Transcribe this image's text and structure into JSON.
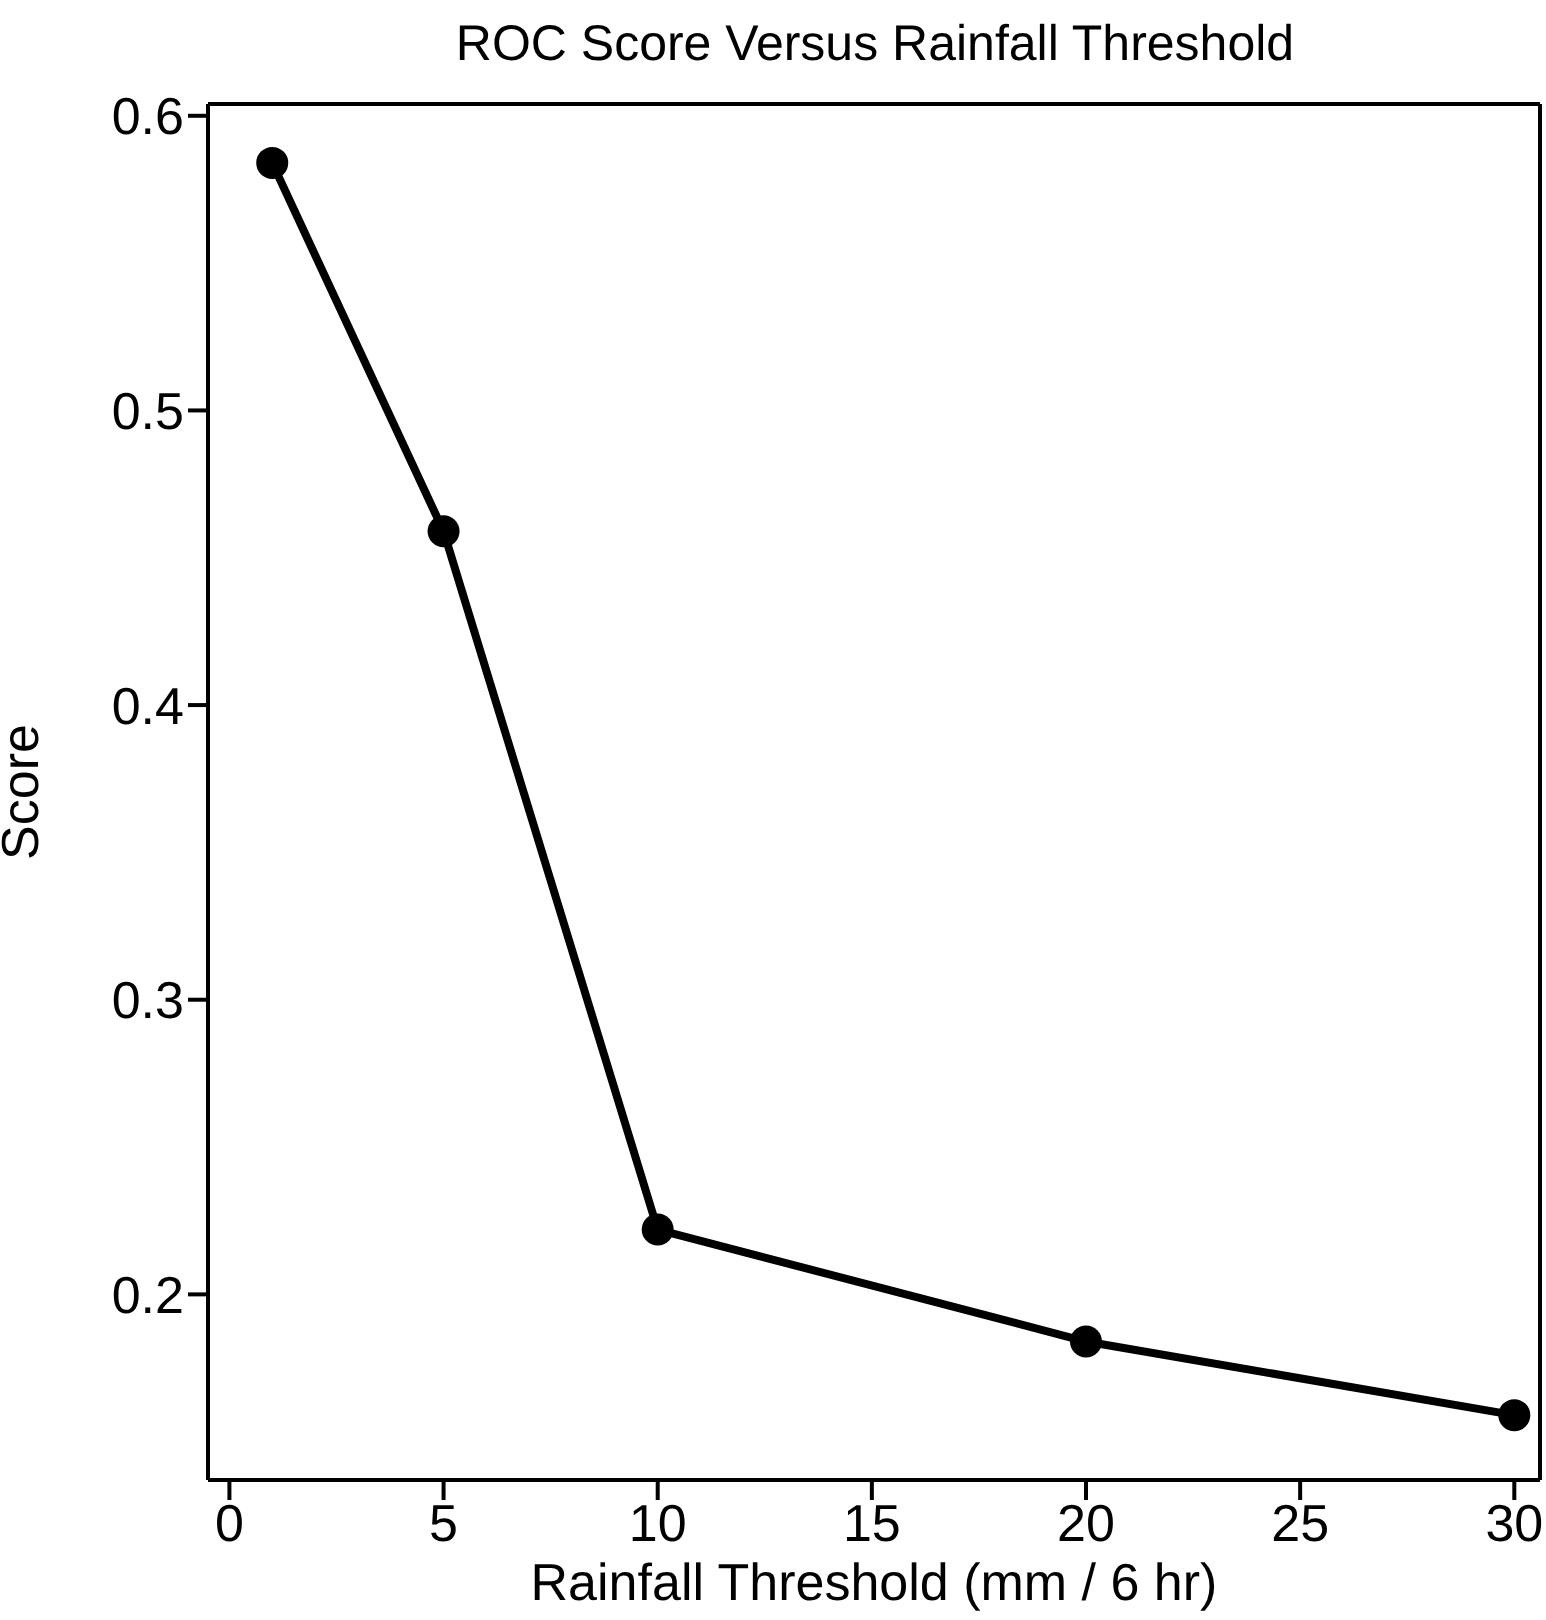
{
  "chart_data": {
    "type": "line",
    "title": "ROC Score Versus Rainfall Threshold",
    "xlabel": "Rainfall Threshold (mm / 6 hr)",
    "ylabel": "Score",
    "x": [
      1,
      5,
      10,
      20,
      30
    ],
    "series": [
      {
        "color": "#000000",
        "values": [
          0.584,
          0.459,
          0.222,
          0.184,
          0.159
        ]
      }
    ],
    "xlim": [
      -0.5,
      30.6
    ],
    "xticks": [
      0,
      5,
      10,
      15,
      20,
      25,
      30
    ],
    "ylim": [
      0.137,
      0.604
    ],
    "yticks": [
      0.2,
      0.3,
      0.4,
      0.5,
      0.6
    ],
    "marker": "circle",
    "line_style": "solid",
    "grid": false,
    "legend": false
  }
}
